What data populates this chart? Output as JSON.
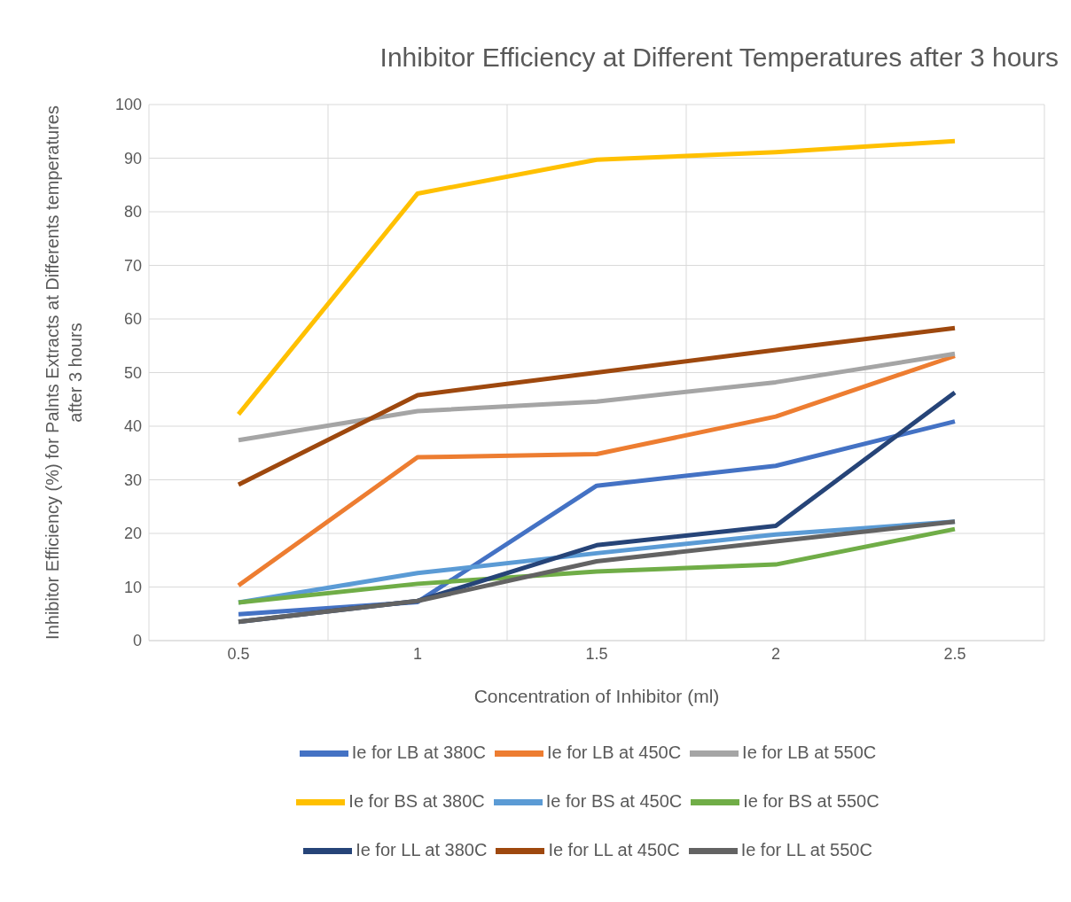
{
  "chart_data": {
    "type": "line",
    "title": "Inhibitor Efficiency at Different Temperatures after 3 hours",
    "xlabel": "Concentration of Inhibitor (ml)",
    "ylabel": "Inhibitor Efficiency (%)  for Palnts Extracts at Differents temperatures after 3 hours",
    "categories": [
      "0.5",
      "1",
      "1.5",
      "2",
      "2.5"
    ],
    "ylim": [
      0,
      100
    ],
    "yticks": [
      0,
      10,
      20,
      30,
      40,
      50,
      60,
      70,
      80,
      90,
      100
    ],
    "grid": true,
    "legend": "bottom",
    "marker": "none",
    "series": [
      {
        "name": "Ie for LB at 380C",
        "color": "#4472c4",
        "values": [
          4.9,
          7.2,
          28.9,
          32.6,
          40.9
        ]
      },
      {
        "name": "Ie for LB at 450C",
        "color": "#ed7d31",
        "values": [
          10.3,
          34.2,
          34.8,
          41.8,
          53.1
        ]
      },
      {
        "name": "Ie for LB at 550C",
        "color": "#a5a5a5",
        "values": [
          37.4,
          42.8,
          44.6,
          48.2,
          53.5
        ]
      },
      {
        "name": "Ie for BS at 380C",
        "color": "#ffc000",
        "values": [
          42.2,
          83.4,
          89.7,
          91.1,
          93.2
        ]
      },
      {
        "name": "Ie for BS at 450C",
        "color": "#5b9bd5",
        "values": [
          7.1,
          12.6,
          16.3,
          19.8,
          22.2
        ]
      },
      {
        "name": "Ie for BS at 550C",
        "color": "#70ad47",
        "values": [
          7.1,
          10.6,
          12.9,
          14.2,
          20.8
        ]
      },
      {
        "name": "Ie for LL at 380C",
        "color": "#264478",
        "values": [
          3.5,
          7.4,
          17.8,
          21.4,
          46.3
        ]
      },
      {
        "name": "Ie for LL at 450C",
        "color": "#9e480e",
        "values": [
          29.1,
          45.8,
          50.0,
          54.2,
          58.3
        ]
      },
      {
        "name": "Ie for LL at 550C",
        "color": "#636363",
        "values": [
          3.5,
          7.4,
          14.8,
          18.5,
          22.2
        ]
      }
    ]
  }
}
